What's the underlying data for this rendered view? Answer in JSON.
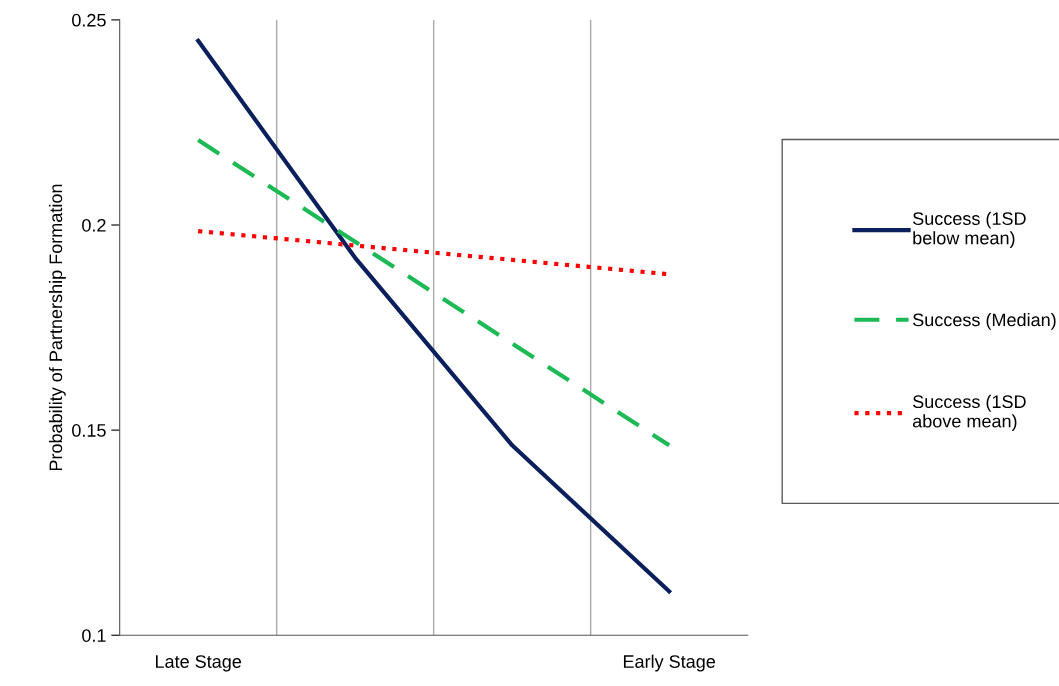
{
  "chart_data": {
    "type": "line",
    "ylabel": "Probability of Partnership Formation",
    "categories": [
      "Late Stage",
      null,
      null,
      "Early Stage"
    ],
    "series": [
      {
        "name": "Success (1SD\nbelow mean)",
        "color": "#0a1f5c",
        "line_style": "solid",
        "values": [
          0.2449,
          0.192,
          0.1463,
          0.1107
        ]
      },
      {
        "name": "Success (Median)",
        "color": "#1db954",
        "line_style": "dashed",
        "values": [
          0.2207,
          0.1959,
          0.1711,
          0.1463
        ]
      },
      {
        "name": "Success (1SD\nabove mean)",
        "color": "#ff0000",
        "line_style": "dotted",
        "values": [
          0.1985,
          0.195,
          0.1915,
          0.188
        ]
      }
    ],
    "ylim": [
      0.1,
      0.25
    ],
    "yticks": [
      0.1,
      0.15,
      0.2,
      0.25
    ],
    "grid": "x",
    "legend": "right",
    "marker": "none"
  }
}
